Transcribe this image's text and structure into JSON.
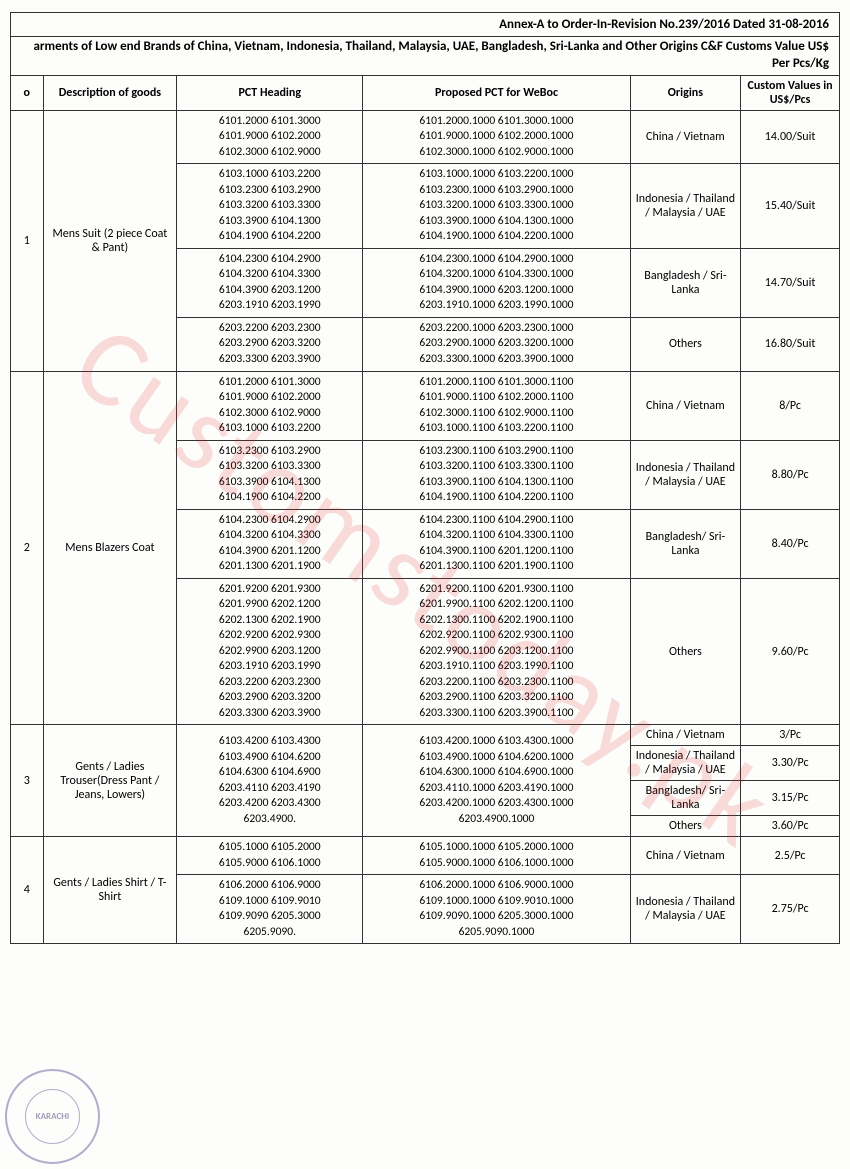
{
  "header": {
    "annex": "Annex-A to Order-In-Revision No.239/2016  Dated 31-08-2016",
    "title": "arments of Low end Brands of China, Vietnam, Indonesia, Thailand, Malaysia, UAE, Bangladesh, Sri-Lanka and Other Origins C&F Customs Value US$ Per Pcs/Kg"
  },
  "columns": {
    "no": "o",
    "desc": "Description  of goods",
    "pct": "PCT Heading",
    "prop": "Proposed PCT for WeBoc",
    "orig": "Origins",
    "val": "Custom Values in US$/Pcs"
  },
  "watermark": "Customstoday.pk",
  "stamp": "KARACHI",
  "rows": [
    {
      "no": "1",
      "desc": "Mens Suit (2 piece Coat & Pant)",
      "pct_blocks": [
        "6101.2000  6101.3000\n6101.9000  6102.2000\n6102.3000  6102.9000",
        "6103.1000  6103.2200\n6103.2300  6103.2900\n6103.3200  6103.3300\n6103.3900  6104.1300\n6104.1900  6104.2200",
        "6104.2300  6104.2900\n6104.3200  6104.3300\n6104.3900  6203.1200\n6203.1910  6203.1990",
        "6203.2200  6203.2300\n6203.2900  6203.3200\n6203.3300  6203.3900"
      ],
      "prop_blocks": [
        "6101.2000.1000  6101.3000.1000\n6101.9000.1000  6102.2000.1000\n6102.3000.1000  6102.9000.1000",
        "6103.1000.1000  6103.2200.1000\n6103.2300.1000  6103.2900.1000\n6103.3200.1000  6103.3300.1000\n6103.3900.1000  6104.1300.1000\n6104.1900.1000  6104.2200.1000",
        "6104.2300.1000  6104.2900.1000\n6104.3200.1000  6104.3300.1000\n6104.3900.1000  6203.1200.1000\n6203.1910.1000  6203.1990.1000",
        "6203.2200.1000  6203.2300.1000\n6203.2900.1000  6203.3200.1000\n6203.3300.1000  6203.3900.1000"
      ],
      "origins": [
        "China / Vietnam",
        "Indonesia / Thailand / Malaysia / UAE",
        "Bangladesh / Sri-Lanka",
        "Others"
      ],
      "values": [
        "14.00/Suit",
        "15.40/Suit",
        "14.70/Suit",
        "16.80/Suit"
      ]
    },
    {
      "no": "2",
      "desc": "Mens Blazers Coat",
      "pct_blocks": [
        "6101.2000  6101.3000\n6101.9000  6102.2000\n6102.3000  6102.9000\n6103.1000  6103.2200",
        "6103.2300  6103.2900\n6103.3200  6103.3300\n6103.3900  6104.1300\n6104.1900  6104.2200",
        "6104.2300  6104.2900\n6104.3200  6104.3300\n6104.3900  6201.1200\n6201.1300  6201.1900",
        "6201.9200  6201.9300\n6201.9900  6202.1200\n6202.1300  6202.1900\n6202.9200  6202.9300\n6202.9900  6203.1200\n6203.1910  6203.1990\n6203.2200  6203.2300\n6203.2900  6203.3200\n6203.3300  6203.3900"
      ],
      "prop_blocks": [
        "6101.2000.1100  6101.3000.1100\n6101.9000.1100  6102.2000.1100\n6102.3000.1100  6102.9000.1100\n6103.1000.1100  6103.2200.1100",
        "6103.2300.1100  6103.2900.1100\n6103.3200.1100  6103.3300.1100\n6103.3900.1100  6104.1300.1100\n6104.1900.1100  6104.2200.1100",
        "6104.2300.1100  6104.2900.1100\n6104.3200.1100  6104.3300.1100\n6104.3900.1100  6201.1200.1100\n6201.1300.1100  6201.1900.1100",
        "6201.9200.1100  6201.9300.1100\n6201.9900.1100  6202.1200.1100\n6202.1300.1100  6202.1900.1100\n6202.9200.1100  6202.9300.1100\n6202.9900.1100  6203.1200.1100\n6203.1910.1100  6203.1990.1100\n6203.2200.1100  6203.2300.1100\n6203.2900.1100  6203.3200.1100\n6203.3300.1100  6203.3900.1100"
      ],
      "origins": [
        "China / Vietnam",
        "Indonesia / Thailand / Malaysia / UAE",
        "Bangladesh/ Sri-Lanka",
        "Others"
      ],
      "values": [
        "8/Pc",
        "8.80/Pc",
        "8.40/Pc",
        "9.60/Pc"
      ]
    },
    {
      "no": "3",
      "desc": "Gents / Ladies Trouser(Dress Pant / Jeans, Lowers)",
      "pct_block": "6103.4200  6103.4300\n6103.4900  6104.6200\n6104.6300  6104.6900\n6203.4110  6203.4190\n6203.4200  6203.4300\n6203.4900.",
      "prop_block": "6103.4200.1000  6103.4300.1000\n6103.4900.1000  6104.6200.1000\n6104.6300.1000  6104.6900.1000\n6203.4110.1000  6203.4190.1000\n6203.4200.1000  6203.4300.1000\n6203.4900.1000",
      "origins": [
        "China / Vietnam",
        "Indonesia / Thailand / Malaysia / UAE",
        "Bangladesh/ Sri-Lanka",
        "Others"
      ],
      "values": [
        "3/Pc",
        "3.30/Pc",
        "3.15/Pc",
        "3.60/Pc"
      ]
    },
    {
      "no": "4",
      "desc": "Gents / Ladies Shirt / T- Shirt",
      "pct_blocks": [
        "6105.1000  6105.2000\n6105.9000  6106.1000",
        "6106.2000  6106.9000\n6109.1000  6109.9010\n6109.9090  6205.3000\n6205.9090."
      ],
      "prop_blocks": [
        "6105.1000.1000  6105.2000.1000\n6105.9000.1000  6106.1000.1000",
        "6106.2000.1000  6106.9000.1000\n6109.1000.1000  6109.9010.1000\n6109.9090.1000  6205.3000.1000\n6205.9090.1000"
      ],
      "origins": [
        "China / Vietnam",
        "Indonesia / Thailand / Malaysia / UAE"
      ],
      "values": [
        "2.5/Pc",
        "2.75/Pc"
      ]
    }
  ]
}
